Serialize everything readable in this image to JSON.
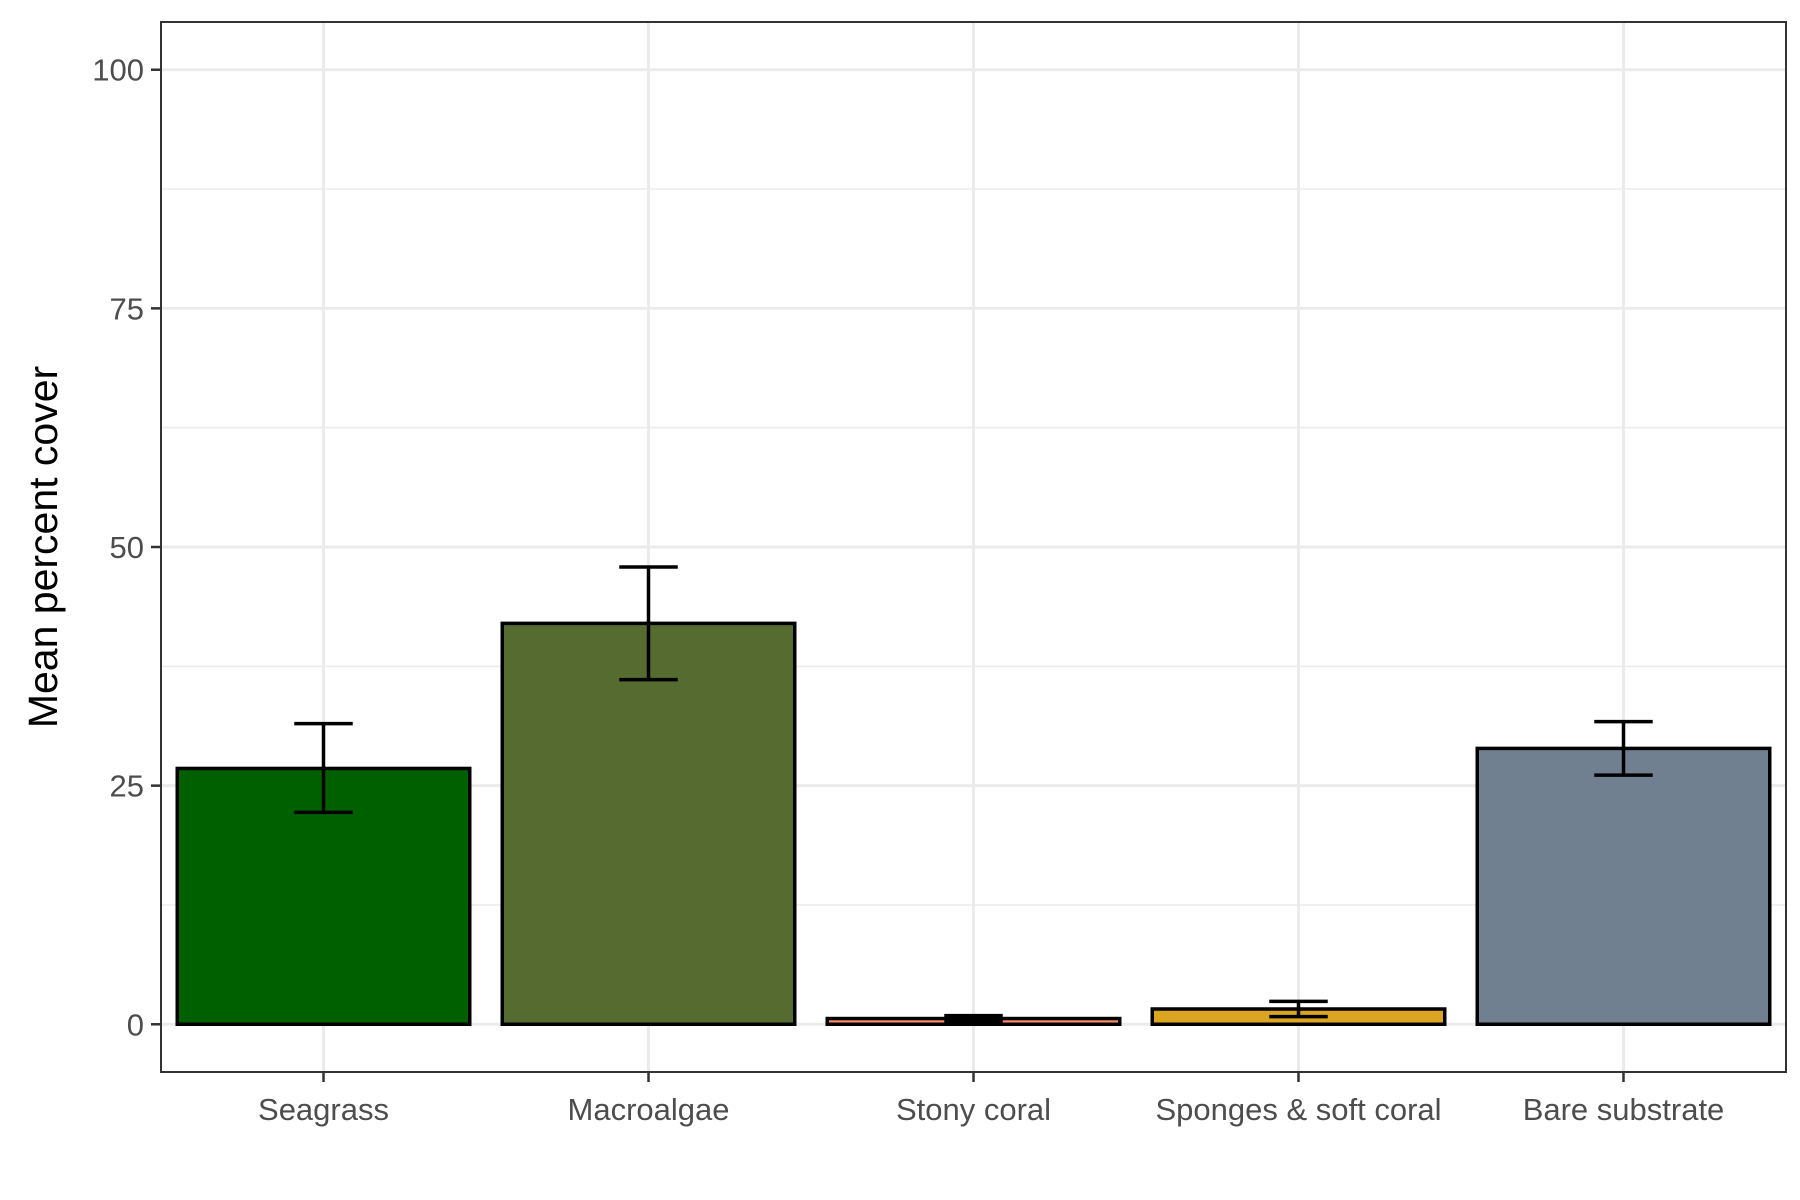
{
  "chart_data": {
    "type": "bar",
    "title": "",
    "xlabel": "",
    "ylabel": "Mean percent cover",
    "categories": [
      "Seagrass",
      "Macroalgae",
      "Stony coral",
      "Sponges & soft coral",
      "Bare substrate"
    ],
    "values": [
      26.8,
      42.0,
      0.6,
      1.6,
      28.9
    ],
    "error_low": [
      22.2,
      36.1,
      0.3,
      0.8,
      26.1
    ],
    "error_high": [
      31.5,
      47.9,
      0.9,
      2.4,
      31.7
    ],
    "colors": [
      "#006000",
      "#556b2f",
      "#ff8c69",
      "#daa520",
      "#708090"
    ],
    "ylim": [
      -5,
      105
    ],
    "yticks": [
      0,
      25,
      50,
      75,
      100
    ],
    "ytick_labels": [
      "0",
      "25",
      "50",
      "75",
      "100"
    ],
    "grid": true,
    "legend": "none"
  }
}
